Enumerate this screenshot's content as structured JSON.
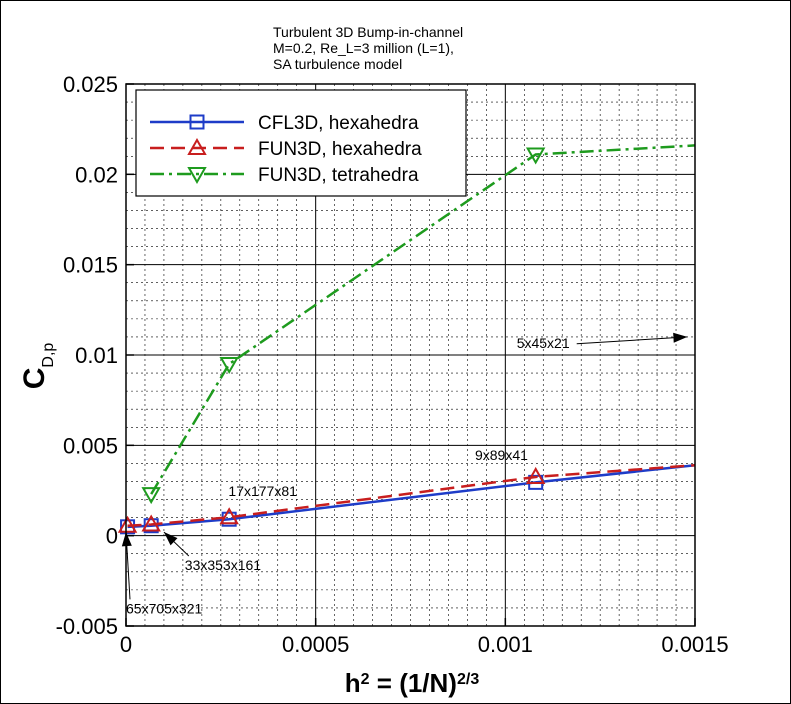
{
  "chart_data": {
    "type": "line",
    "title": [
      "Turbulent 3D Bump-in-channel",
      "M=0.2, Re_L=3 million (L=1),",
      "SA turbulence model"
    ],
    "xlabel": "h^2 = (1/N)^(2/3)",
    "ylabel": "C_D,p",
    "xlim": [
      0,
      0.0015
    ],
    "ylim": [
      -0.005,
      0.025
    ],
    "xticks": [
      "0",
      "0.0005",
      "0.001",
      "0.0015"
    ],
    "yticks": [
      "-0.005",
      "0",
      "0.005",
      "0.01",
      "0.015",
      "0.02",
      "0.025"
    ],
    "grid": "on",
    "legend_position": "top-left",
    "series": [
      {
        "name": "CFL3D, hexahedra",
        "color": "#1e3cc8",
        "marker": "square",
        "line": "solid",
        "x": [
          4.1e-06,
          6.64e-05,
          0.000272,
          0.00108
        ],
        "y": [
          0.00049,
          0.00055,
          0.00091,
          0.00295
        ],
        "extend_to": [
          0.0015,
          0.0039
        ]
      },
      {
        "name": "FUN3D, hexahedra",
        "color": "#c81e1e",
        "marker": "triangle-up",
        "line": "dashed",
        "x": [
          4.1e-06,
          6.64e-05,
          0.000272,
          0.00108
        ],
        "y": [
          0.00055,
          0.00062,
          0.00102,
          0.00325
        ],
        "extend_to": [
          0.0015,
          0.0039
        ]
      },
      {
        "name": "FUN3D, tetrahedra",
        "color": "#1e9b1e",
        "marker": "triangle-down",
        "line": "dashdot",
        "x": [
          6.64e-05,
          0.000272,
          0.00108
        ],
        "y": [
          0.0023,
          0.0095,
          0.0211
        ],
        "extend_to": [
          0.0015,
          0.0216
        ]
      }
    ],
    "annotations": [
      {
        "text": "5x45x21",
        "tx": 0.00103,
        "ty": 0.0104,
        "ax": 0.00148,
        "ay": 0.011
      },
      {
        "text": "9x89x41",
        "tx": 0.00092,
        "ty": 0.0042
      },
      {
        "text": "17x177x81",
        "tx": 0.00027,
        "ty": 0.0022
      },
      {
        "text": "33x353x161",
        "tx": 0.000155,
        "ty": -0.0019,
        "ax": 0.0001,
        "ay": 0.0002
      },
      {
        "text": "65x705x321",
        "tx": 0.0,
        "ty": -0.0043,
        "ax": 0.0,
        "ay": 0.0002
      }
    ]
  }
}
